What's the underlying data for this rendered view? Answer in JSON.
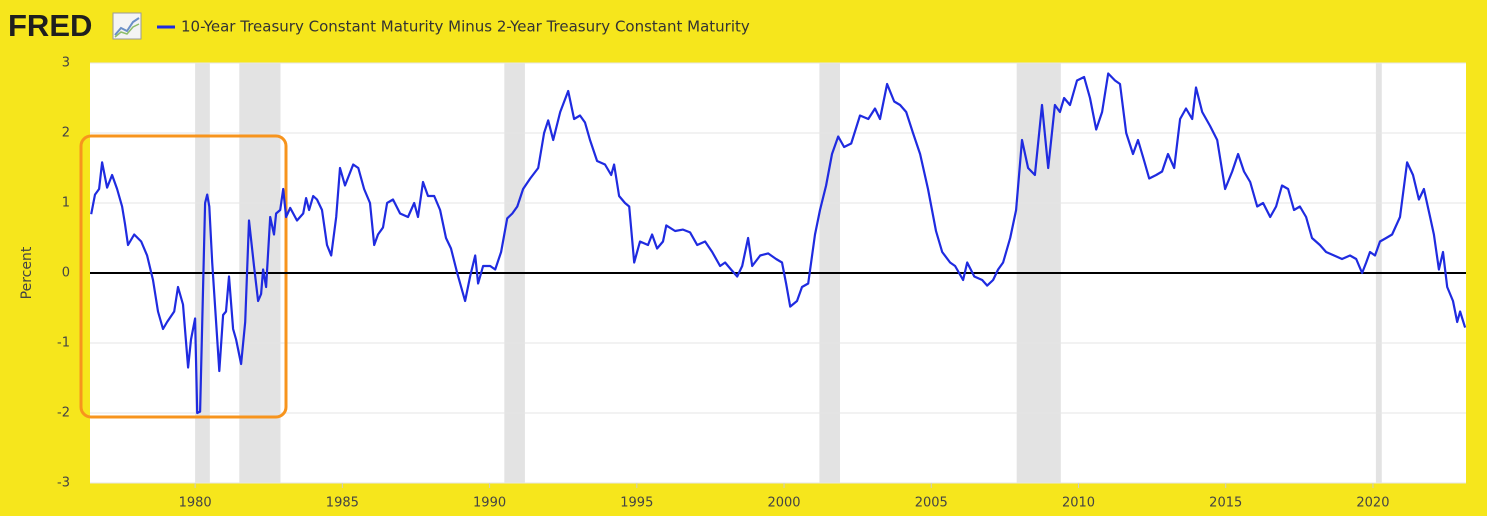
{
  "chart_data": {
    "type": "line",
    "logo": "FRED",
    "ylabel": "Percent",
    "series": [
      {
        "name": "10-Year Treasury Constant Maturity Minus 2-Year Treasury Constant Maturity",
        "color": "#1f2be0",
        "values": [
          0.84,
          1.12,
          1.2,
          1.58,
          1.22,
          1.4,
          1.2,
          0.95,
          0.7,
          0.4,
          0.55,
          0.45,
          0.25,
          -0.1,
          -0.55,
          -0.8,
          -0.7,
          -0.55,
          -0.2,
          -0.45,
          -1.35,
          -0.95,
          -0.65,
          -2.0,
          -1.98,
          1.0,
          1.12,
          0.95,
          0.15,
          -1.4,
          -0.6,
          -0.55,
          -0.05,
          -0.8,
          -0.95,
          -1.3,
          -0.7,
          0.75,
          0.1,
          -0.4,
          -0.3,
          0.05,
          -0.2,
          0.8,
          0.55,
          0.85,
          0.9,
          1.2,
          0.8,
          0.93,
          0.75,
          0.85,
          1.07,
          0.9,
          1.1,
          1.05,
          0.9,
          0.4,
          0.25,
          0.8,
          1.5,
          1.25,
          1.55,
          1.5,
          1.2,
          1.0,
          0.4,
          0.55,
          0.65,
          1.0,
          1.05,
          0.85,
          0.8,
          1.0,
          0.8,
          1.3,
          1.1,
          1.1,
          0.9,
          0.5,
          0.35,
          0.0,
          -0.4,
          -0.05,
          0.25,
          -0.15,
          0.1,
          0.1,
          0.05,
          0.3,
          0.78,
          0.85,
          0.95,
          1.2,
          1.35,
          1.5,
          2.0,
          2.18,
          1.9,
          2.3,
          2.6,
          2.2,
          2.25,
          2.15,
          1.9,
          1.6,
          1.55,
          1.4,
          1.55,
          1.1,
          1.0,
          0.95,
          0.15,
          0.45,
          0.4,
          0.55,
          0.35,
          0.45,
          0.68,
          0.6,
          0.62,
          0.58,
          0.4,
          0.45,
          0.3,
          0.1,
          0.15,
          0.05,
          -0.05,
          0.1,
          0.5,
          0.1,
          0.25,
          0.28,
          0.2,
          0.15,
          -0.15,
          -0.48,
          -0.4,
          -0.2,
          -0.15,
          0.55,
          0.9,
          1.25,
          1.7,
          1.95,
          1.8,
          1.85,
          2.25,
          2.2,
          2.35,
          2.2,
          2.7,
          2.45,
          2.4,
          2.3,
          2.0,
          1.7,
          1.2,
          0.6,
          0.3,
          0.15,
          0.1,
          -0.1,
          0.15,
          -0.05,
          -0.1,
          -0.18,
          -0.1,
          0.05,
          0.15,
          0.5,
          0.9,
          1.9,
          1.5,
          1.4,
          2.4,
          1.5,
          2.4,
          2.3,
          2.5,
          2.4,
          2.75,
          2.8,
          2.5,
          2.05,
          2.3,
          2.85,
          2.75,
          2.7,
          2.0,
          1.7,
          1.9,
          1.6,
          1.35,
          1.4,
          1.45,
          1.7,
          1.5,
          2.2,
          2.35,
          2.2,
          2.65,
          2.3,
          2.1,
          1.9,
          1.2,
          1.45,
          1.7,
          1.45,
          1.3,
          0.95,
          1.0,
          0.8,
          0.95,
          1.25,
          1.2,
          0.9,
          0.95,
          0.8,
          0.5,
          0.4,
          0.3,
          0.25,
          0.2,
          0.25,
          0.2,
          0.0,
          0.15,
          0.3,
          0.25,
          0.45,
          0.5,
          0.55,
          0.8,
          1.58,
          1.4,
          1.05,
          1.2,
          0.8,
          0.55,
          0.05,
          0.3,
          -0.2,
          -0.4,
          -0.7,
          -0.55,
          -0.78
        ]
      }
    ],
    "x": [
      1976.47,
      1976.6,
      1976.74,
      1976.84,
      1977.01,
      1977.18,
      1977.35,
      1977.52,
      1977.62,
      1977.72,
      1977.93,
      1978.17,
      1978.37,
      1978.57,
      1978.74,
      1978.91,
      1979.05,
      1979.29,
      1979.42,
      1979.59,
      1979.76,
      1979.86,
      1980.0,
      1980.07,
      1980.17,
      1980.34,
      1980.41,
      1980.48,
      1980.58,
      1980.82,
      1980.95,
      1981.05,
      1981.15,
      1981.29,
      1981.39,
      1981.56,
      1981.7,
      1981.83,
      1982.0,
      1982.14,
      1982.24,
      1982.31,
      1982.41,
      1982.55,
      1982.68,
      1982.75,
      1982.89,
      1982.99,
      1983.09,
      1983.23,
      1983.46,
      1983.67,
      1983.77,
      1983.87,
      1984.01,
      1984.14,
      1984.31,
      1984.48,
      1984.62,
      1984.79,
      1984.92,
      1985.09,
      1985.37,
      1985.54,
      1985.74,
      1985.94,
      1986.08,
      1986.21,
      1986.38,
      1986.52,
      1986.72,
      1986.96,
      1987.23,
      1987.44,
      1987.57,
      1987.74,
      1987.91,
      1988.12,
      1988.32,
      1988.52,
      1988.69,
      1988.9,
      1989.17,
      1989.34,
      1989.51,
      1989.61,
      1989.78,
      1990.02,
      1990.19,
      1990.39,
      1990.6,
      1990.77,
      1990.94,
      1991.14,
      1991.38,
      1991.65,
      1991.85,
      1991.99,
      1992.16,
      1992.4,
      1992.67,
      1992.87,
      1993.07,
      1993.24,
      1993.41,
      1993.65,
      1993.92,
      1994.13,
      1994.23,
      1994.4,
      1994.6,
      1994.74,
      1994.91,
      1995.11,
      1995.38,
      1995.52,
      1995.69,
      1995.89,
      1996.0,
      1996.3,
      1996.57,
      1996.81,
      1997.05,
      1997.32,
      1997.56,
      1997.83,
      1998.0,
      1998.2,
      1998.41,
      1998.58,
      1998.78,
      1998.92,
      1999.19,
      1999.46,
      1999.73,
      1999.93,
      2000.07,
      2000.21,
      2000.44,
      2000.61,
      2000.82,
      2001.05,
      2001.22,
      2001.43,
      2001.63,
      2001.84,
      2002.04,
      2002.28,
      2002.58,
      2002.86,
      2003.09,
      2003.26,
      2003.5,
      2003.74,
      2003.94,
      2004.15,
      2004.38,
      2004.62,
      2004.89,
      2005.16,
      2005.37,
      2005.64,
      2005.81,
      2006.08,
      2006.22,
      2006.46,
      2006.73,
      2006.9,
      2007.1,
      2007.27,
      2007.44,
      2007.68,
      2007.88,
      2008.08,
      2008.29,
      2008.52,
      2008.76,
      2008.97,
      2009.2,
      2009.37,
      2009.51,
      2009.71,
      2009.95,
      2010.19,
      2010.39,
      2010.6,
      2010.8,
      2011.01,
      2011.24,
      2011.41,
      2011.62,
      2011.85,
      2012.02,
      2012.23,
      2012.4,
      2012.64,
      2012.84,
      2013.04,
      2013.25,
      2013.45,
      2013.65,
      2013.86,
      2013.99,
      2014.2,
      2014.47,
      2014.71,
      2014.98,
      2015.22,
      2015.42,
      2015.62,
      2015.83,
      2016.07,
      2016.27,
      2016.51,
      2016.71,
      2016.91,
      2017.12,
      2017.32,
      2017.52,
      2017.73,
      2017.93,
      2018.2,
      2018.41,
      2018.68,
      2018.95,
      2019.22,
      2019.43,
      2019.63,
      2019.77,
      2019.9,
      2020.07,
      2020.24,
      2020.45,
      2020.65,
      2020.92,
      2021.16,
      2021.36,
      2021.56,
      2021.73,
      2021.94,
      2022.07,
      2022.24,
      2022.38,
      2022.52,
      2022.72,
      2022.86,
      2022.96,
      2023.13
    ],
    "recessions": [
      [
        1980.0,
        1980.5
      ],
      [
        1981.5,
        1982.9
      ],
      [
        1990.5,
        1991.2
      ],
      [
        2001.2,
        2001.9
      ],
      [
        2007.9,
        2009.4
      ],
      [
        2020.1,
        2020.3
      ]
    ],
    "xlim": [
      1976.43,
      2023.16
    ],
    "xticks": [
      1980,
      1985,
      1990,
      1995,
      2000,
      2005,
      2010,
      2015,
      2020
    ],
    "ylim": [
      -3,
      3
    ],
    "yticks": [
      -3,
      -2,
      -1,
      0,
      1,
      2,
      3
    ],
    "grid": true
  }
}
